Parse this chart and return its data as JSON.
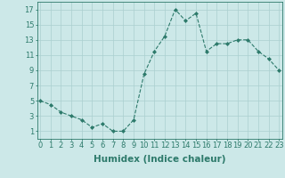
{
  "x": [
    0,
    1,
    2,
    3,
    4,
    5,
    6,
    7,
    8,
    9,
    10,
    11,
    12,
    13,
    14,
    15,
    16,
    17,
    18,
    19,
    20,
    21,
    22,
    23
  ],
  "y": [
    5,
    4.5,
    3.5,
    3,
    2.5,
    1.5,
    2,
    1,
    1,
    2.5,
    8.5,
    11.5,
    13.5,
    17,
    15.5,
    16.5,
    11.5,
    12.5,
    12.5,
    13,
    13,
    11.5,
    10.5,
    9
  ],
  "line_color": "#2d7a6b",
  "marker": "D",
  "marker_size": 2.0,
  "bg_color": "#cce8e8",
  "grid_color": "#aacfcf",
  "xlabel": "Humidex (Indice chaleur)",
  "xlabel_fontsize": 7.5,
  "yticks": [
    1,
    3,
    5,
    7,
    9,
    11,
    13,
    15,
    17
  ],
  "xticks": [
    0,
    1,
    2,
    3,
    4,
    5,
    6,
    7,
    8,
    9,
    10,
    11,
    12,
    13,
    14,
    15,
    16,
    17,
    18,
    19,
    20,
    21,
    22,
    23
  ],
  "xlim": [
    -0.3,
    23.3
  ],
  "ylim": [
    0,
    18
  ],
  "tick_color": "#2d7a6b",
  "tick_fontsize": 6,
  "axis_color": "#2d7a6b",
  "linewidth": 0.8
}
